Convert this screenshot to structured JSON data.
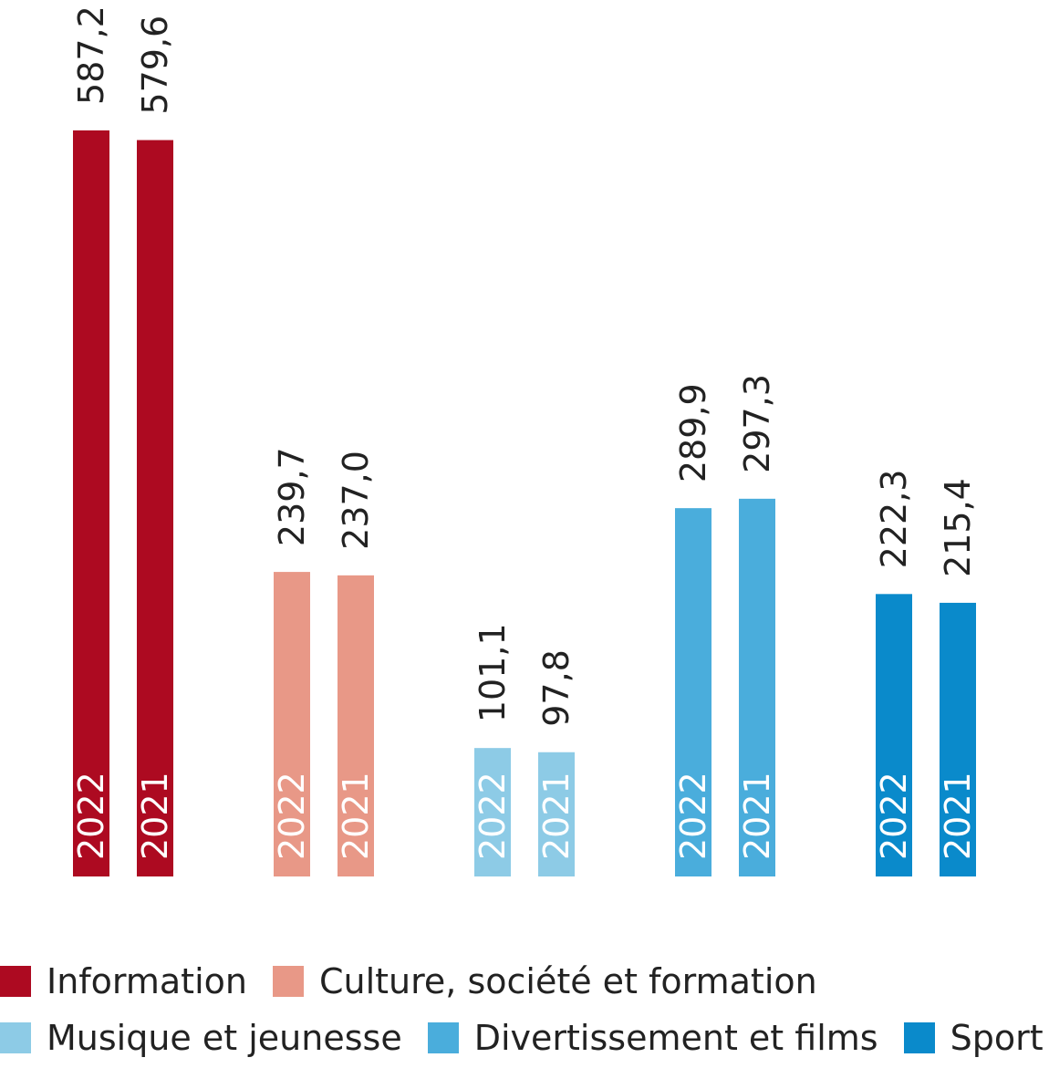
{
  "chart_data": {
    "type": "bar",
    "categories": [
      "Information",
      "Culture, société et formation",
      "Musique et jeunesse",
      "Divertissement et films",
      "Sport"
    ],
    "colors": [
      "#ad0a21",
      "#e89887",
      "#8dcbe6",
      "#4aaddc",
      "#0a8acb"
    ],
    "series": [
      {
        "name": "2022",
        "values": [
          587.2,
          239.7,
          101.1,
          289.9,
          222.3
        ],
        "labels": [
          "587,2",
          "239,7",
          "101,1",
          "289,9",
          "222,3"
        ]
      },
      {
        "name": "2021",
        "values": [
          579.6,
          237.0,
          97.8,
          297.3,
          215.4
        ],
        "labels": [
          "579,6",
          "237,0",
          "97,8",
          "297,3",
          "215,4"
        ]
      }
    ],
    "legend_position": "bottom",
    "grid": false,
    "ylim": [
      0,
      587.2
    ]
  }
}
